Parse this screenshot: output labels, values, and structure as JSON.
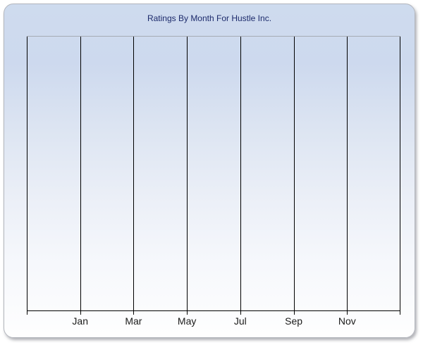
{
  "chart": {
    "title": "Ratings By Month For Hustle Inc."
  },
  "chart_data": {
    "type": "line",
    "title": "Ratings By Month For Hustle Inc.",
    "x_tick_labels": [
      "Jan",
      "Mar",
      "May",
      "Jul",
      "Sep",
      "Nov"
    ],
    "x_gridline_count": 8,
    "series": [],
    "y_axis": "none (no y-axis ticks or labels shown)",
    "legend": "none",
    "grid": "vertical gridlines only; plot area is empty (no data series rendered)"
  },
  "colors": {
    "panel_gradient_top": "#cedbee",
    "panel_gradient_mid": "#ebeff7",
    "panel_gradient_bottom": "#fefefe",
    "panel_border": "#b3b6bd",
    "plot_top_border": "#a6abb4",
    "gridline": "#000000",
    "axis_line": "#000000",
    "title_color": "#1c2a6b",
    "tick_label_color": "#1a1a1a"
  }
}
